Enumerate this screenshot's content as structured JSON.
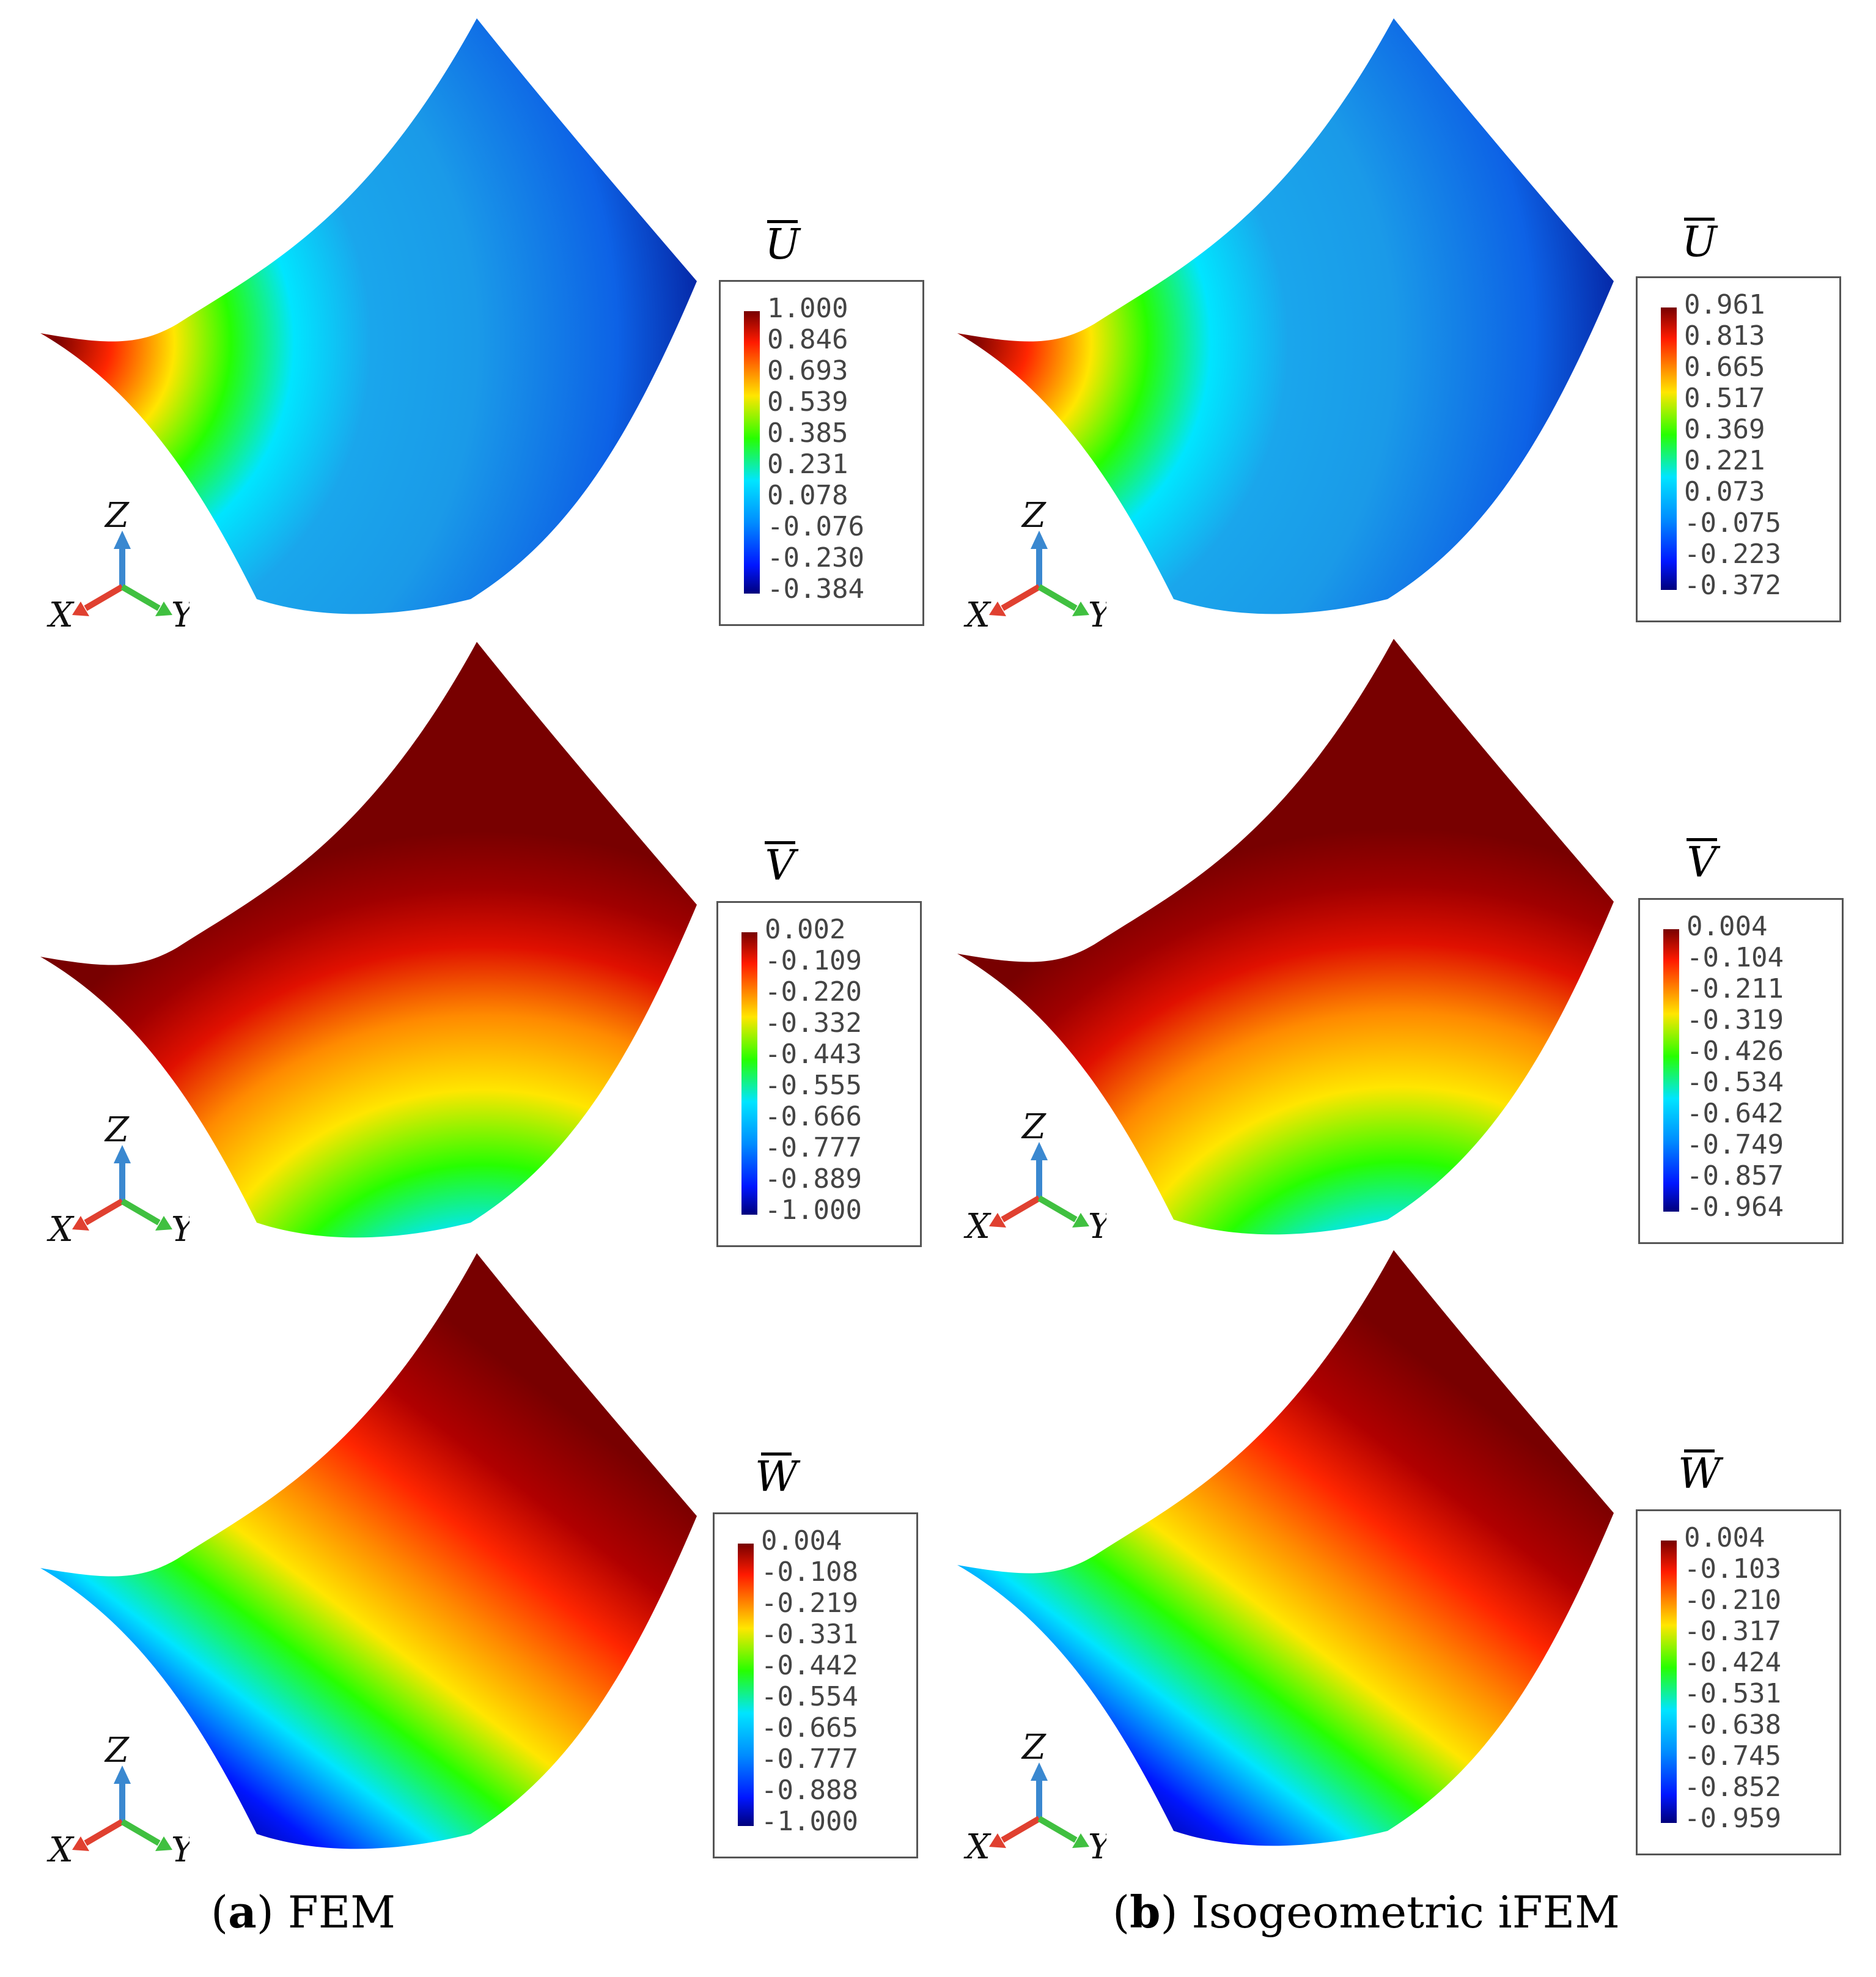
{
  "colors": {
    "scale": [
      "#00007c",
      "#0016ff",
      "#008cff",
      "#00e5ff",
      "#00ff8c",
      "#27ff00",
      "#b8ff00",
      "#ffe600",
      "#ff8a00",
      "#ff2600",
      "#c00000",
      "#780000"
    ],
    "axis_x": "#e04030",
    "axis_y": "#40c040",
    "axis_z": "#3a88d0"
  },
  "columns": [
    {
      "id": "fem",
      "caption_letter": "a",
      "caption_text": "FEM"
    },
    {
      "id": "ifem",
      "caption_letter": "b",
      "caption_text": "Isogeometric iFEM"
    }
  ],
  "panels": [
    {
      "symbol": "U",
      "column": "fem",
      "legend_values": [
        "1.000",
        "0.846",
        "0.693",
        "0.539",
        "0.385",
        "0.231",
        "0.078",
        "-0.076",
        "-0.230",
        "-0.384"
      ]
    },
    {
      "symbol": "U",
      "column": "ifem",
      "legend_values": [
        "0.961",
        "0.813",
        "0.665",
        "0.517",
        "0.369",
        "0.221",
        "0.073",
        "-0.075",
        "-0.223",
        "-0.372"
      ]
    },
    {
      "symbol": "V",
      "column": "fem",
      "legend_values": [
        "0.002",
        "-0.109",
        "-0.220",
        "-0.332",
        "-0.443",
        "-0.555",
        "-0.666",
        "-0.777",
        "-0.889",
        "-1.000"
      ]
    },
    {
      "symbol": "V",
      "column": "ifem",
      "legend_values": [
        "0.004",
        "-0.104",
        "-0.211",
        "-0.319",
        "-0.426",
        "-0.534",
        "-0.642",
        "-0.749",
        "-0.857",
        "-0.964"
      ]
    },
    {
      "symbol": "W",
      "column": "fem",
      "legend_values": [
        "0.004",
        "-0.108",
        "-0.219",
        "-0.331",
        "-0.442",
        "-0.554",
        "-0.665",
        "-0.777",
        "-0.888",
        "-1.000"
      ]
    },
    {
      "symbol": "W",
      "column": "ifem",
      "legend_values": [
        "0.004",
        "-0.103",
        "-0.210",
        "-0.317",
        "-0.424",
        "-0.531",
        "-0.638",
        "-0.745",
        "-0.852",
        "-0.959"
      ]
    }
  ],
  "triad": {
    "x": "X",
    "y": "Y",
    "z": "Z"
  },
  "captions": {
    "a_letter": "a",
    "a_text": "FEM",
    "b_letter": "b",
    "b_text": "Isogeometric iFEM"
  }
}
